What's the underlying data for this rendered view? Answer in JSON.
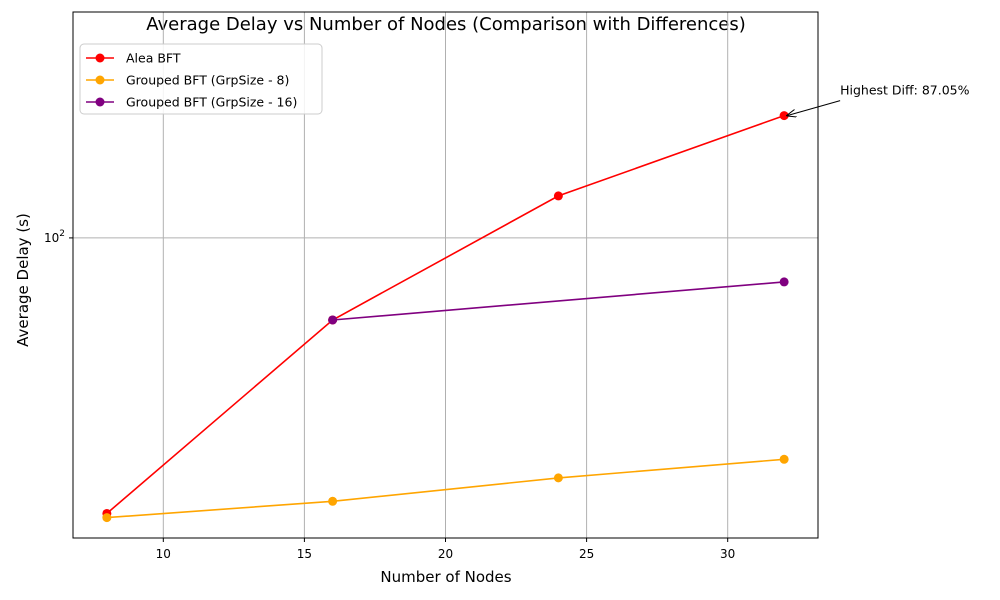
{
  "chart_data": {
    "type": "line",
    "title": "Average Delay vs Number of Nodes (Comparison with Differences)",
    "xlabel": "Number of Nodes",
    "ylabel": "Average Delay (s)",
    "xlim": [
      6.8,
      33.2
    ],
    "ylim": [
      50.6,
      167
    ],
    "yscale": "log",
    "grid": true,
    "legend": "upper-left",
    "x_ticks": [
      10,
      15,
      20,
      25,
      30
    ],
    "y_ticks": [
      {
        "value": 100,
        "base": "10",
        "exp": "2"
      }
    ],
    "series": [
      {
        "name": "Alea BFT",
        "color": "#ff0000",
        "x": [
          8,
          16,
          24,
          32
        ],
        "y": [
          53.5,
          83.0,
          110.0,
          132.0
        ]
      },
      {
        "name": "Grouped BFT (GrpSize - 8)",
        "color": "#ffa500",
        "x": [
          8,
          16,
          24,
          32
        ],
        "y": [
          53.0,
          55.0,
          58.0,
          60.5
        ]
      },
      {
        "name": "Grouped BFT (GrpSize - 16)",
        "color": "#800080",
        "x": [
          16,
          32
        ],
        "y": [
          83.0,
          90.5
        ]
      }
    ],
    "annotations": [
      {
        "text": "Highest Diff: 87.05%",
        "x": 32,
        "y": 132.0,
        "arrow": true
      }
    ]
  }
}
